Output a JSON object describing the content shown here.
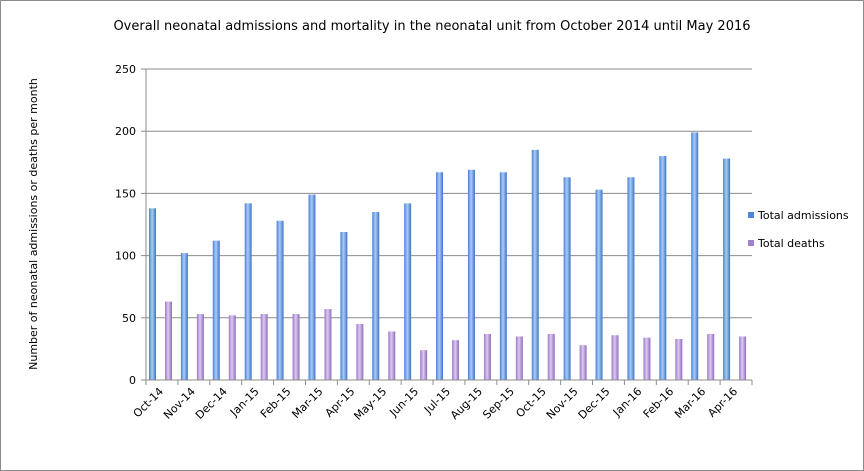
{
  "chart_data": {
    "type": "bar",
    "title": "Overall neonatal admissions and mortality in the neonatal unit from October 2014 until May 2016",
    "xlabel": "",
    "ylabel": "Number of neonatal admissions or deaths per month",
    "ylim": [
      0,
      250
    ],
    "yticks": [
      0,
      50,
      100,
      150,
      200,
      250
    ],
    "grid": true,
    "legend": "right",
    "categories": [
      "Oct-14",
      "Nov-14",
      "Dec-14",
      "Jan-15",
      "Feb-15",
      "Mar-15",
      "Apr-15",
      "May-15",
      "Jun-15",
      "Jul-15",
      "Aug-15",
      "Sep-15",
      "Oct-15",
      "Nov-15",
      "Dec-15",
      "Jan-16",
      "Feb-16",
      "Mar-16",
      "Apr-16"
    ],
    "series": [
      {
        "name": "Total admissions",
        "color": "#4f86d9",
        "values": [
          138,
          102,
          112,
          142,
          128,
          149,
          119,
          135,
          142,
          167,
          169,
          167,
          185,
          163,
          153,
          163,
          180,
          199,
          178
        ]
      },
      {
        "name": "Total deaths",
        "color": "#a07fcc",
        "values": [
          63,
          53,
          52,
          53,
          53,
          57,
          45,
          39,
          24,
          32,
          37,
          35,
          37,
          28,
          36,
          34,
          33,
          37,
          35
        ]
      }
    ]
  }
}
